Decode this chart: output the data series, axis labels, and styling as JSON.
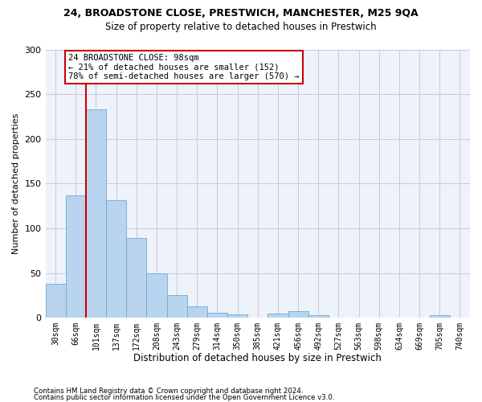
{
  "title1": "24, BROADSTONE CLOSE, PRESTWICH, MANCHESTER, M25 9QA",
  "title2": "Size of property relative to detached houses in Prestwich",
  "xlabel": "Distribution of detached houses by size in Prestwich",
  "ylabel": "Number of detached properties",
  "footer1": "Contains HM Land Registry data © Crown copyright and database right 2024.",
  "footer2": "Contains public sector information licensed under the Open Government Licence v3.0.",
  "bin_labels": [
    "30sqm",
    "66sqm",
    "101sqm",
    "137sqm",
    "172sqm",
    "208sqm",
    "243sqm",
    "279sqm",
    "314sqm",
    "350sqm",
    "385sqm",
    "421sqm",
    "456sqm",
    "492sqm",
    "527sqm",
    "563sqm",
    "598sqm",
    "634sqm",
    "669sqm",
    "705sqm",
    "740sqm"
  ],
  "bar_values": [
    38,
    137,
    233,
    131,
    89,
    50,
    25,
    13,
    6,
    4,
    0,
    5,
    7,
    3,
    0,
    0,
    0,
    0,
    0,
    3,
    0
  ],
  "bar_color": "#b8d4ee",
  "bar_edgecolor": "#6aaad4",
  "grid_color": "#c8c8d8",
  "background_color": "#eef2fb",
  "red_line_bin_index": 2,
  "annotation_line1": "24 BROADSTONE CLOSE: 98sqm",
  "annotation_line2": "← 21% of detached houses are smaller (152)",
  "annotation_line3": "78% of semi-detached houses are larger (570) →",
  "annotation_box_edgecolor": "#cc0000",
  "red_line_color": "#cc0000",
  "ylim": [
    0,
    300
  ],
  "yticks": [
    0,
    50,
    100,
    150,
    200,
    250,
    300
  ]
}
